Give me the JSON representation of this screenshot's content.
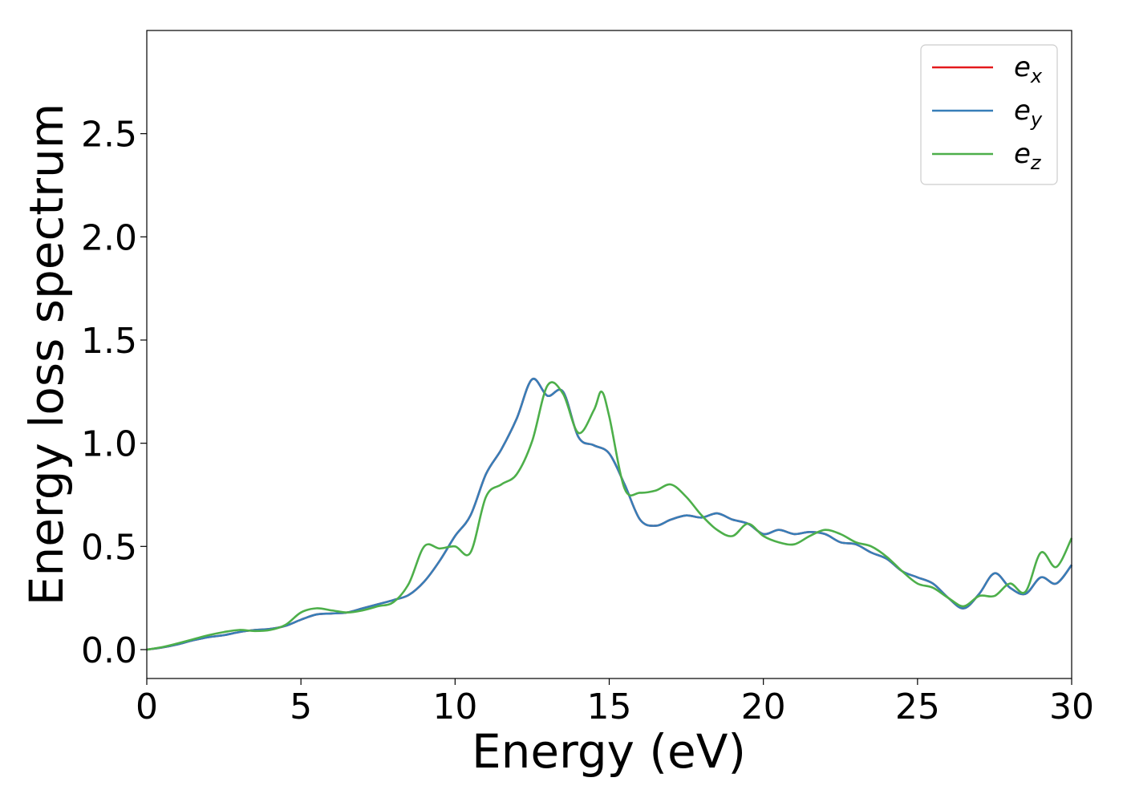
{
  "chart_data": {
    "type": "line",
    "title": "",
    "xlabel": "Energy (eV)",
    "ylabel": "Energy loss spectrum",
    "xlim": [
      0,
      30
    ],
    "ylim": [
      -0.14,
      3.0
    ],
    "xticks": [
      0,
      5,
      10,
      15,
      20,
      25,
      30
    ],
    "xtick_labels": [
      "0",
      "5",
      "10",
      "15",
      "20",
      "25",
      "30"
    ],
    "yticks": [
      0.0,
      0.5,
      1.0,
      1.5,
      2.0,
      2.5
    ],
    "ytick_labels": [
      "0.0",
      "0.5",
      "1.0",
      "1.5",
      "2.0",
      "2.5"
    ],
    "grid": false,
    "legend_position": "top-right",
    "series": [
      {
        "name": "e_x",
        "legend_base": "e",
        "legend_sub": "x",
        "color": "#e41a1c",
        "points": [
          [
            0,
            0
          ],
          [
            0.5,
            0.01
          ],
          [
            1,
            0.025
          ],
          [
            1.5,
            0.045
          ],
          [
            2,
            0.06
          ],
          [
            2.5,
            0.07
          ],
          [
            3,
            0.085
          ],
          [
            3.5,
            0.095
          ],
          [
            4,
            0.1
          ],
          [
            4.5,
            0.115
          ],
          [
            5,
            0.145
          ],
          [
            5.5,
            0.17
          ],
          [
            6,
            0.175
          ],
          [
            6.5,
            0.18
          ],
          [
            7,
            0.2
          ],
          [
            7.5,
            0.22
          ],
          [
            8,
            0.24
          ],
          [
            8.5,
            0.265
          ],
          [
            9,
            0.33
          ],
          [
            9.5,
            0.43
          ],
          [
            10,
            0.55
          ],
          [
            10.5,
            0.65
          ],
          [
            11,
            0.85
          ],
          [
            11.5,
            0.97
          ],
          [
            12,
            1.12
          ],
          [
            12.5,
            1.31
          ],
          [
            13,
            1.23
          ],
          [
            13.5,
            1.25
          ],
          [
            14,
            1.03
          ],
          [
            14.5,
            0.99
          ],
          [
            15,
            0.95
          ],
          [
            15.5,
            0.8
          ],
          [
            16,
            0.63
          ],
          [
            16.5,
            0.6
          ],
          [
            17,
            0.63
          ],
          [
            17.5,
            0.65
          ],
          [
            18,
            0.64
          ],
          [
            18.5,
            0.66
          ],
          [
            19,
            0.63
          ],
          [
            19.5,
            0.61
          ],
          [
            20,
            0.56
          ],
          [
            20.5,
            0.58
          ],
          [
            21,
            0.56
          ],
          [
            21.5,
            0.57
          ],
          [
            22,
            0.56
          ],
          [
            22.5,
            0.52
          ],
          [
            23,
            0.51
          ],
          [
            23.5,
            0.47
          ],
          [
            24,
            0.44
          ],
          [
            24.5,
            0.38
          ],
          [
            25,
            0.35
          ],
          [
            25.5,
            0.32
          ],
          [
            26,
            0.25
          ],
          [
            26.5,
            0.2
          ],
          [
            27,
            0.27
          ],
          [
            27.5,
            0.37
          ],
          [
            28,
            0.3
          ],
          [
            28.5,
            0.27
          ],
          [
            29,
            0.35
          ],
          [
            29.5,
            0.32
          ],
          [
            30,
            0.41
          ]
        ]
      },
      {
        "name": "e_y",
        "legend_base": "e",
        "legend_sub": "y",
        "color": "#377eb8",
        "points": [
          [
            0,
            0
          ],
          [
            0.5,
            0.01
          ],
          [
            1,
            0.025
          ],
          [
            1.5,
            0.045
          ],
          [
            2,
            0.06
          ],
          [
            2.5,
            0.07
          ],
          [
            3,
            0.085
          ],
          [
            3.5,
            0.095
          ],
          [
            4,
            0.1
          ],
          [
            4.5,
            0.115
          ],
          [
            5,
            0.145
          ],
          [
            5.5,
            0.17
          ],
          [
            6,
            0.175
          ],
          [
            6.5,
            0.18
          ],
          [
            7,
            0.2
          ],
          [
            7.5,
            0.22
          ],
          [
            8,
            0.24
          ],
          [
            8.5,
            0.265
          ],
          [
            9,
            0.33
          ],
          [
            9.5,
            0.43
          ],
          [
            10,
            0.55
          ],
          [
            10.5,
            0.65
          ],
          [
            11,
            0.85
          ],
          [
            11.5,
            0.97
          ],
          [
            12,
            1.12
          ],
          [
            12.5,
            1.31
          ],
          [
            13,
            1.23
          ],
          [
            13.5,
            1.25
          ],
          [
            14,
            1.03
          ],
          [
            14.5,
            0.99
          ],
          [
            15,
            0.95
          ],
          [
            15.5,
            0.8
          ],
          [
            16,
            0.63
          ],
          [
            16.5,
            0.6
          ],
          [
            17,
            0.63
          ],
          [
            17.5,
            0.65
          ],
          [
            18,
            0.64
          ],
          [
            18.5,
            0.66
          ],
          [
            19,
            0.63
          ],
          [
            19.5,
            0.61
          ],
          [
            20,
            0.56
          ],
          [
            20.5,
            0.58
          ],
          [
            21,
            0.56
          ],
          [
            21.5,
            0.57
          ],
          [
            22,
            0.56
          ],
          [
            22.5,
            0.52
          ],
          [
            23,
            0.51
          ],
          [
            23.5,
            0.47
          ],
          [
            24,
            0.44
          ],
          [
            24.5,
            0.38
          ],
          [
            25,
            0.35
          ],
          [
            25.5,
            0.32
          ],
          [
            26,
            0.25
          ],
          [
            26.5,
            0.2
          ],
          [
            27,
            0.27
          ],
          [
            27.5,
            0.37
          ],
          [
            28,
            0.3
          ],
          [
            28.5,
            0.27
          ],
          [
            29,
            0.35
          ],
          [
            29.5,
            0.32
          ],
          [
            30,
            0.41
          ]
        ]
      },
      {
        "name": "e_z",
        "legend_base": "e",
        "legend_sub": "z",
        "color": "#4daf4a",
        "points": [
          [
            0,
            0
          ],
          [
            0.5,
            0.012
          ],
          [
            1,
            0.03
          ],
          [
            1.5,
            0.05
          ],
          [
            2,
            0.07
          ],
          [
            2.5,
            0.085
          ],
          [
            3,
            0.095
          ],
          [
            3.5,
            0.09
          ],
          [
            4,
            0.095
          ],
          [
            4.5,
            0.12
          ],
          [
            5,
            0.18
          ],
          [
            5.5,
            0.2
          ],
          [
            6,
            0.19
          ],
          [
            6.5,
            0.18
          ],
          [
            7,
            0.19
          ],
          [
            7.5,
            0.21
          ],
          [
            8,
            0.23
          ],
          [
            8.5,
            0.32
          ],
          [
            9,
            0.5
          ],
          [
            9.5,
            0.49
          ],
          [
            10,
            0.5
          ],
          [
            10.5,
            0.47
          ],
          [
            11,
            0.74
          ],
          [
            11.5,
            0.8
          ],
          [
            12,
            0.85
          ],
          [
            12.5,
            1.01
          ],
          [
            13,
            1.28
          ],
          [
            13.5,
            1.24
          ],
          [
            14,
            1.05
          ],
          [
            14.5,
            1.16
          ],
          [
            14.75,
            1.25
          ],
          [
            15,
            1.13
          ],
          [
            15.5,
            0.78
          ],
          [
            16,
            0.76
          ],
          [
            16.5,
            0.77
          ],
          [
            17,
            0.8
          ],
          [
            17.5,
            0.74
          ],
          [
            18,
            0.65
          ],
          [
            18.5,
            0.58
          ],
          [
            19,
            0.55
          ],
          [
            19.5,
            0.61
          ],
          [
            20,
            0.55
          ],
          [
            20.5,
            0.52
          ],
          [
            21,
            0.51
          ],
          [
            21.5,
            0.55
          ],
          [
            22,
            0.58
          ],
          [
            22.5,
            0.56
          ],
          [
            23,
            0.52
          ],
          [
            23.5,
            0.5
          ],
          [
            24,
            0.45
          ],
          [
            24.5,
            0.38
          ],
          [
            25,
            0.32
          ],
          [
            25.5,
            0.3
          ],
          [
            26,
            0.25
          ],
          [
            26.5,
            0.21
          ],
          [
            27,
            0.26
          ],
          [
            27.5,
            0.26
          ],
          [
            28,
            0.32
          ],
          [
            28.5,
            0.28
          ],
          [
            29,
            0.47
          ],
          [
            29.5,
            0.4
          ],
          [
            30,
            0.54
          ]
        ]
      }
    ]
  }
}
